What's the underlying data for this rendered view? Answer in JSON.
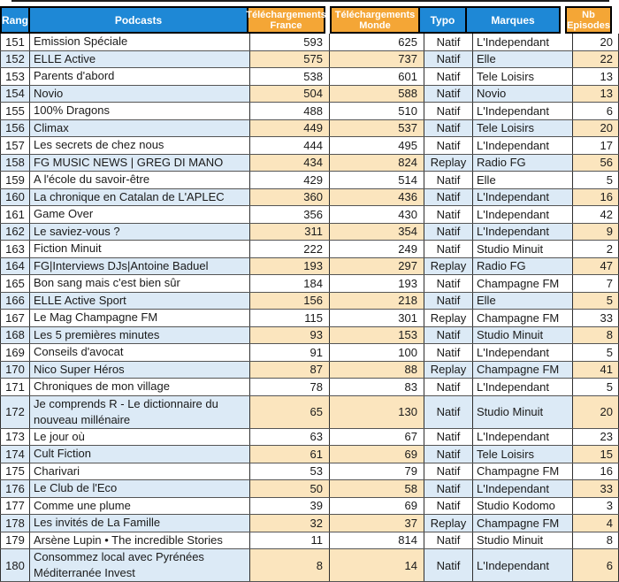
{
  "header": {
    "rang": "Rang",
    "podcasts": "Podcasts",
    "fr": "Téléchargements France",
    "monde": "Téléchargements Monde",
    "typo": "Typo",
    "marques": "Marques",
    "nb": "Nb Episodes"
  },
  "colors": {
    "header-blue": "#1E88D6",
    "header-orange": "#F4A636",
    "row-shade-blue": "#DCEAF6",
    "row-shade-tan": "#FBE5BE",
    "header-text": "#FFFFFF",
    "cell-text": "#1A1A1A",
    "grid-dark": "#2F2F2F",
    "grid-row": "#555555"
  },
  "rows": [
    {
      "rang": "151",
      "podcast": "Emission Spéciale",
      "fr": "593",
      "monde": "625",
      "typo": "Natif",
      "marque": "L'Independant",
      "nb": "20"
    },
    {
      "rang": "152",
      "podcast": "ELLE Active",
      "fr": "575",
      "monde": "737",
      "typo": "Natif",
      "marque": "Elle",
      "nb": "22"
    },
    {
      "rang": "153",
      "podcast": "Parents d'abord",
      "fr": "538",
      "monde": "601",
      "typo": "Natif",
      "marque": "Tele Loisirs",
      "nb": "13"
    },
    {
      "rang": "154",
      "podcast": "Novio",
      "fr": "504",
      "monde": "588",
      "typo": "Natif",
      "marque": "Novio",
      "nb": "13"
    },
    {
      "rang": "155",
      "podcast": "100% Dragons",
      "fr": "488",
      "monde": "510",
      "typo": "Natif",
      "marque": "L'Independant",
      "nb": "6"
    },
    {
      "rang": "156",
      "podcast": "Climax",
      "fr": "449",
      "monde": "537",
      "typo": "Natif",
      "marque": "Tele Loisirs",
      "nb": "20"
    },
    {
      "rang": "157",
      "podcast": "Les secrets de chez nous",
      "fr": "444",
      "monde": "495",
      "typo": "Natif",
      "marque": "L'Independant",
      "nb": "17"
    },
    {
      "rang": "158",
      "podcast": "FG MUSIC NEWS | GREG DI MANO",
      "fr": "434",
      "monde": "824",
      "typo": "Replay",
      "marque": "Radio FG",
      "nb": "56"
    },
    {
      "rang": "159",
      "podcast": "A l'école du savoir-être",
      "fr": "429",
      "monde": "514",
      "typo": "Natif",
      "marque": "Elle",
      "nb": "5"
    },
    {
      "rang": "160",
      "podcast": "La chronique en Catalan de L'APLEC",
      "fr": "360",
      "monde": "436",
      "typo": "Natif",
      "marque": "L'Independant",
      "nb": "16"
    },
    {
      "rang": "161",
      "podcast": "Game Over",
      "fr": "356",
      "monde": "430",
      "typo": "Natif",
      "marque": "L'Independant",
      "nb": "42"
    },
    {
      "rang": "162",
      "podcast": "Le saviez-vous ?",
      "fr": "311",
      "monde": "354",
      "typo": "Natif",
      "marque": "L'Independant",
      "nb": "9"
    },
    {
      "rang": "163",
      "podcast": "Fiction Minuit",
      "fr": "222",
      "monde": "249",
      "typo": "Natif",
      "marque": "Studio Minuit",
      "nb": "2"
    },
    {
      "rang": "164",
      "podcast": "FG|Interviews DJs|Antoine Baduel",
      "fr": "193",
      "monde": "297",
      "typo": "Replay",
      "marque": "Radio FG",
      "nb": "47"
    },
    {
      "rang": "165",
      "podcast": "Bon sang mais c'est bien sûr",
      "fr": "184",
      "monde": "193",
      "typo": "Natif",
      "marque": "Champagne FM",
      "nb": "7"
    },
    {
      "rang": "166",
      "podcast": "ELLE Active Sport",
      "fr": "156",
      "monde": "218",
      "typo": "Natif",
      "marque": "Elle",
      "nb": "5"
    },
    {
      "rang": "167",
      "podcast": "Le Mag Champagne FM",
      "fr": "115",
      "monde": "301",
      "typo": "Replay",
      "marque": "Champagne FM",
      "nb": "33"
    },
    {
      "rang": "168",
      "podcast": "Les 5 premières minutes",
      "fr": "93",
      "monde": "153",
      "typo": "Natif",
      "marque": "Studio Minuit",
      "nb": "8"
    },
    {
      "rang": "169",
      "podcast": "Conseils d'avocat",
      "fr": "91",
      "monde": "100",
      "typo": "Natif",
      "marque": "L'Independant",
      "nb": "5"
    },
    {
      "rang": "170",
      "podcast": "Nico Super Héros",
      "fr": "87",
      "monde": "88",
      "typo": "Replay",
      "marque": "Champagne FM",
      "nb": "41"
    },
    {
      "rang": "171",
      "podcast": "Chroniques de mon village",
      "fr": "78",
      "monde": "83",
      "typo": "Natif",
      "marque": "L'Independant",
      "nb": "5"
    },
    {
      "rang": "172",
      "podcast": "Je comprends R - Le dictionnaire du nouveau millénaire",
      "fr": "65",
      "monde": "130",
      "typo": "Natif",
      "marque": "Studio Minuit",
      "nb": "20"
    },
    {
      "rang": "173",
      "podcast": "Le jour où",
      "fr": "63",
      "monde": "67",
      "typo": "Natif",
      "marque": "L'Independant",
      "nb": "23"
    },
    {
      "rang": "174",
      "podcast": "Cult Fiction",
      "fr": "61",
      "monde": "69",
      "typo": "Natif",
      "marque": "Tele Loisirs",
      "nb": "15"
    },
    {
      "rang": "175",
      "podcast": "Charivari",
      "fr": "53",
      "monde": "79",
      "typo": "Natif",
      "marque": "Champagne FM",
      "nb": "16"
    },
    {
      "rang": "176",
      "podcast": "Le Club de l'Eco",
      "fr": "50",
      "monde": "58",
      "typo": "Natif",
      "marque": "L'Independant",
      "nb": "33"
    },
    {
      "rang": "177",
      "podcast": "Comme une plume",
      "fr": "39",
      "monde": "69",
      "typo": "Natif",
      "marque": "Studio Kodomo",
      "nb": "3"
    },
    {
      "rang": "178",
      "podcast": "Les invités de La Famille",
      "fr": "32",
      "monde": "37",
      "typo": "Replay",
      "marque": "Champagne FM",
      "nb": "4"
    },
    {
      "rang": "179",
      "podcast": "Arsène Lupin • The incredible Stories",
      "fr": "11",
      "monde": "814",
      "typo": "Natif",
      "marque": "Studio Minuit",
      "nb": "8"
    },
    {
      "rang": "180",
      "podcast": "Consommez local avec Pyrénées Méditerranée Invest",
      "fr": "8",
      "monde": "14",
      "typo": "Natif",
      "marque": "L'Independant",
      "nb": "6"
    }
  ]
}
